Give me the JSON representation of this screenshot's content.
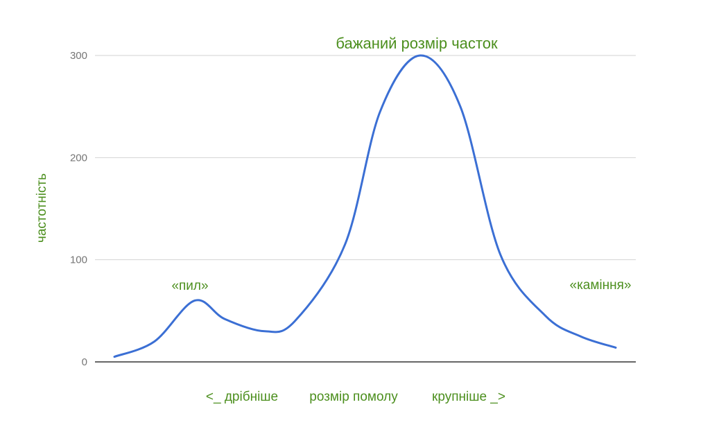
{
  "chart_data": {
    "type": "line",
    "title": "бажаний розмір часток",
    "ylabel": "частотність",
    "xlabel": "розмір помолу",
    "xlabel_left": "<_ дрібніше",
    "xlabel_right": "крупніше _>",
    "ylim": [
      0,
      300
    ],
    "yticks": [
      0,
      100,
      200,
      300
    ],
    "grid": true,
    "legend": "none",
    "series": [
      {
        "color": "#3b6fd4",
        "points": [
          [
            0.0,
            5
          ],
          [
            0.08,
            20
          ],
          [
            0.16,
            60
          ],
          [
            0.22,
            42
          ],
          [
            0.3,
            30
          ],
          [
            0.36,
            40
          ],
          [
            0.46,
            115
          ],
          [
            0.53,
            245
          ],
          [
            0.61,
            300
          ],
          [
            0.69,
            250
          ],
          [
            0.77,
            105
          ],
          [
            0.86,
            45
          ],
          [
            0.93,
            25
          ],
          [
            1.0,
            14
          ]
        ]
      }
    ],
    "annotations": [
      {
        "label": "«пил»",
        "x": 0.15,
        "y": 60
      },
      {
        "label": "«каміння»",
        "x": 0.98,
        "y": 14
      }
    ]
  },
  "colors": {
    "line": "#3b6fd4",
    "annotation": "#4c8f1e",
    "grid": "#d2d2d2",
    "axis": "#333333"
  }
}
